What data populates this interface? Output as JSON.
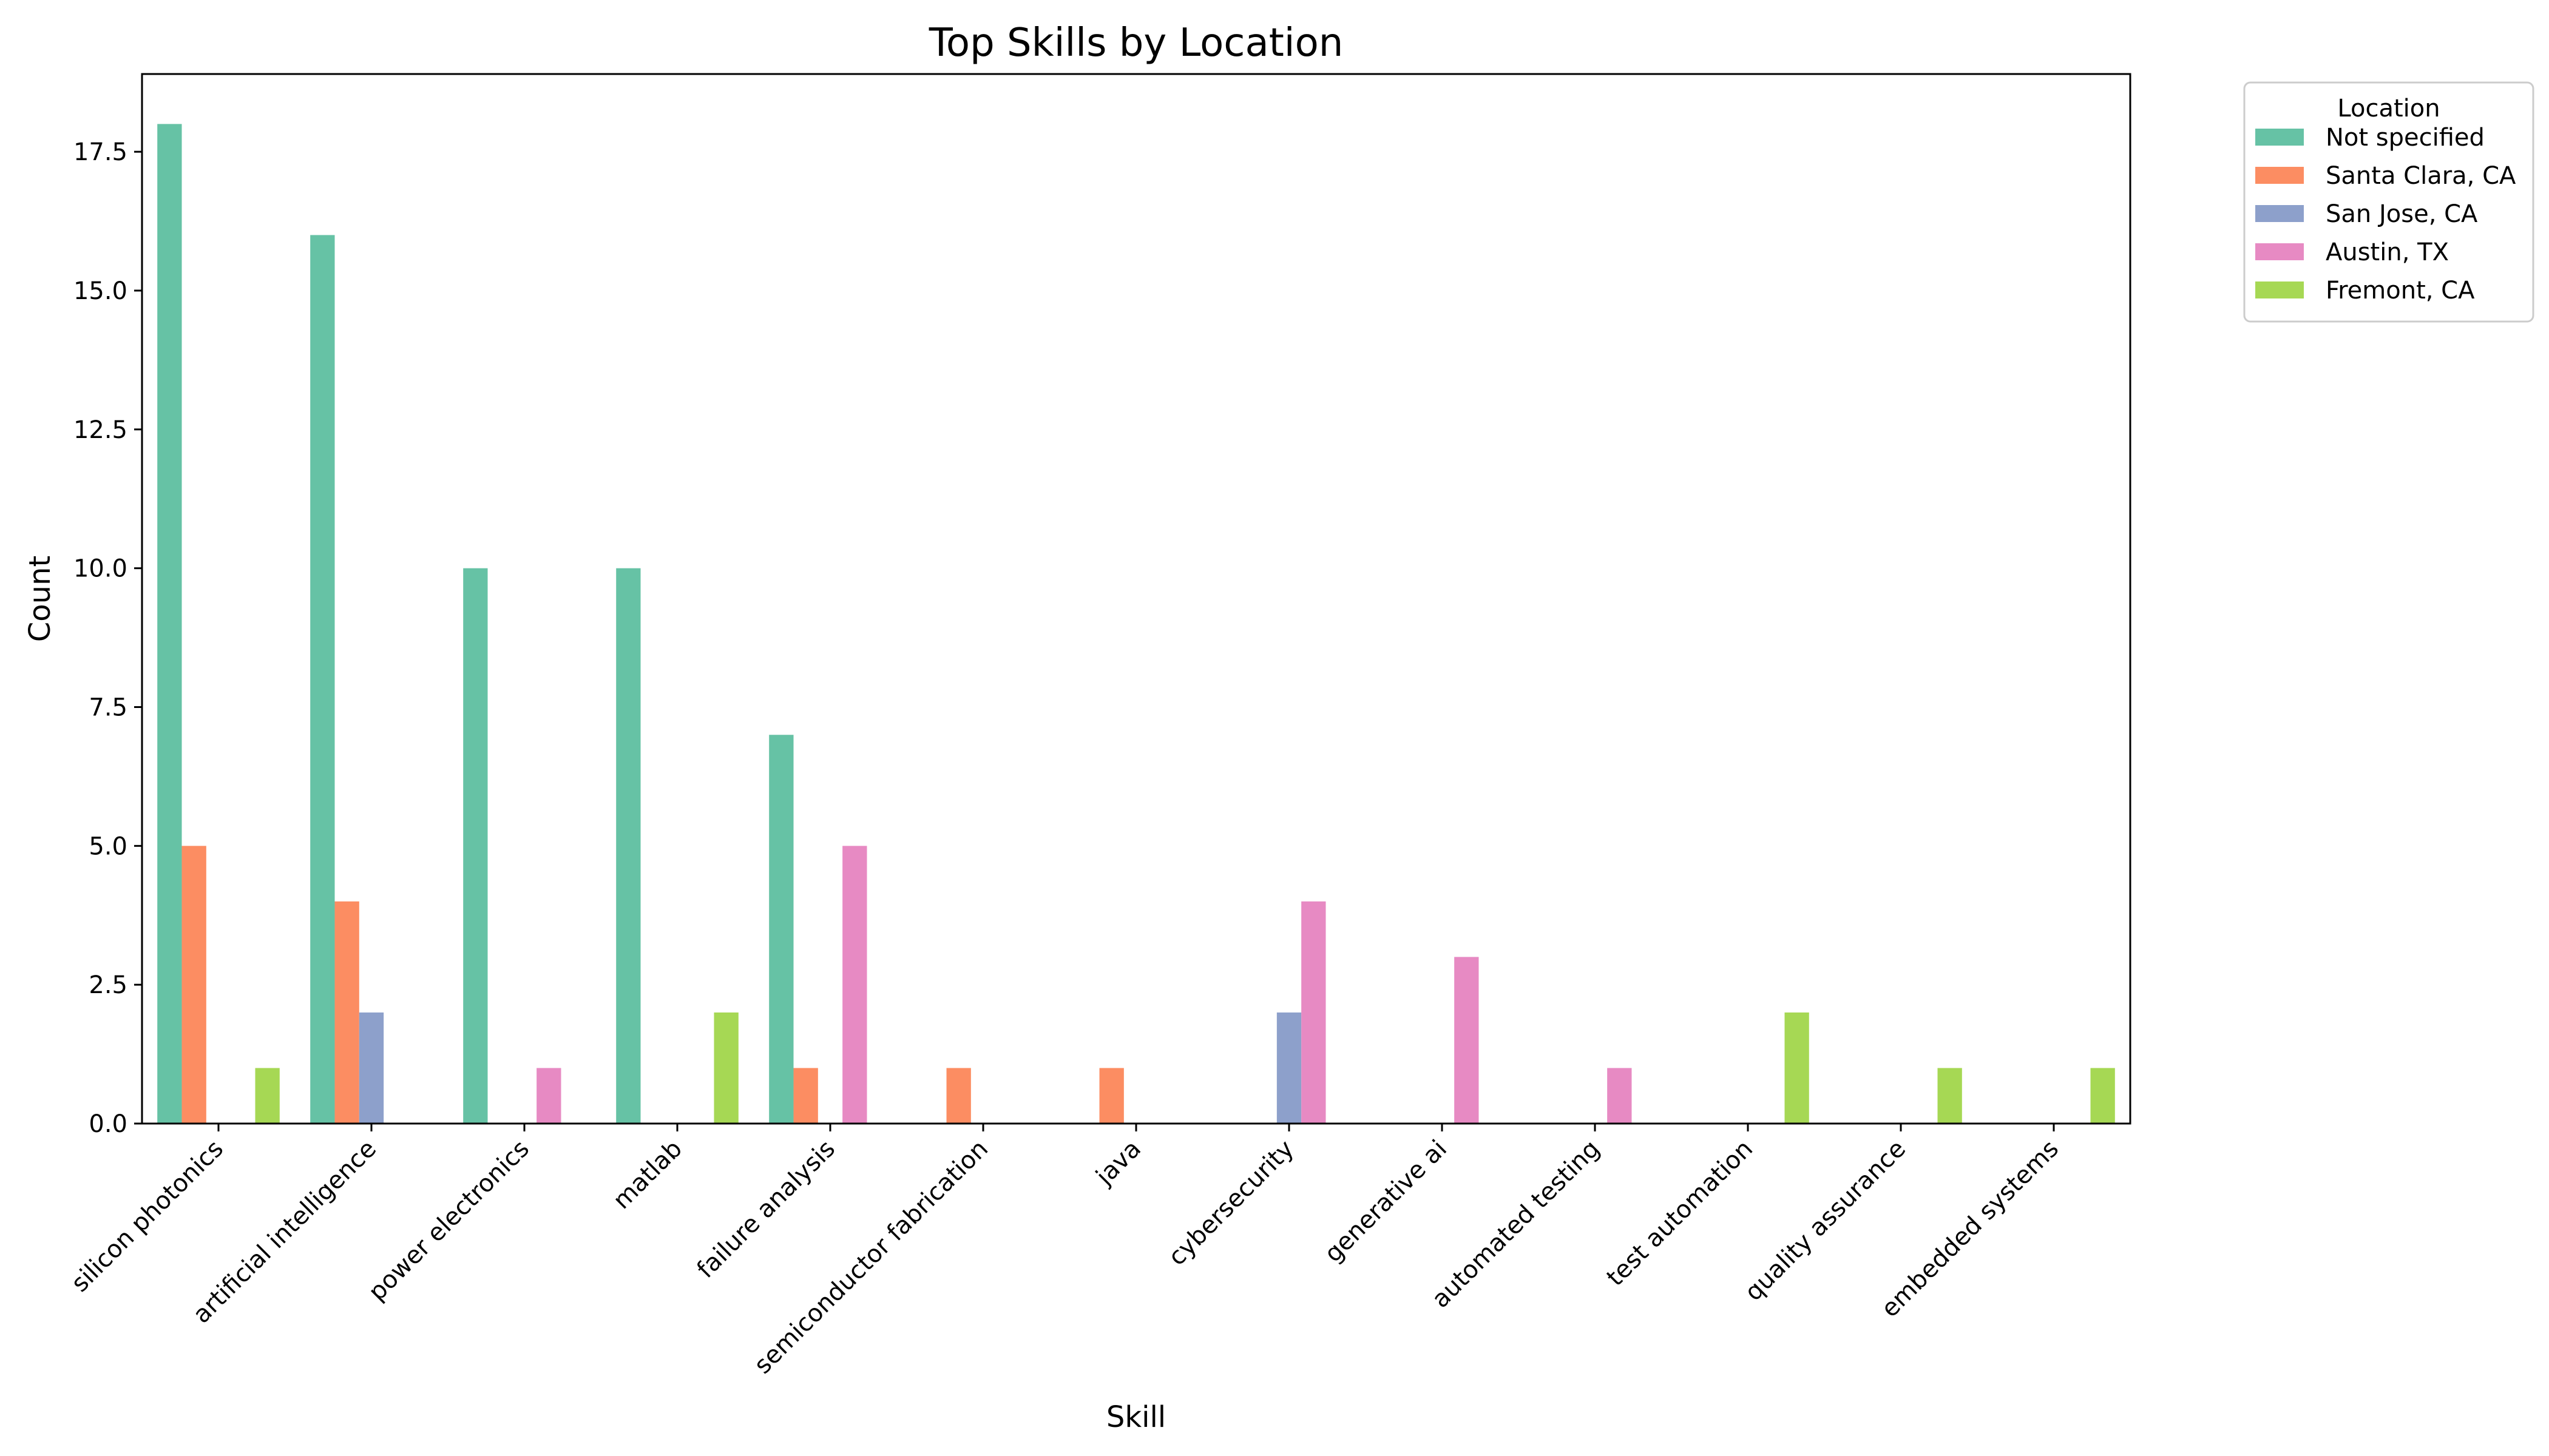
{
  "chart_data": {
    "type": "bar",
    "title": "Top Skills by Location",
    "xlabel": "Skill",
    "ylabel": "Count",
    "ylim": [
      0,
      18.9
    ],
    "yticks": [
      0,
      2.5,
      5,
      7.5,
      10,
      12.5,
      15,
      17.5
    ],
    "ytick_labels": [
      "0.0",
      "2.5",
      "5.0",
      "7.5",
      "10.0",
      "12.5",
      "15.0",
      "17.5"
    ],
    "categories": [
      "silicon photonics",
      "artificial intelligence",
      "power electronics",
      "matlab",
      "failure analysis",
      "semiconductor fabrication",
      "java",
      "cybersecurity",
      "generative ai",
      "automated testing",
      "test automation",
      "quality assurance",
      "embedded systems"
    ],
    "legend": {
      "title": "Location",
      "placement": "outside-top-right"
    },
    "series": [
      {
        "name": "Not specified",
        "color": "#66c2a5",
        "values": [
          18,
          16,
          10,
          10,
          7,
          0,
          0,
          0,
          0,
          0,
          0,
          0,
          0
        ]
      },
      {
        "name": "Santa Clara, CA",
        "color": "#fc8d62",
        "values": [
          5,
          4,
          0,
          0,
          1,
          1,
          1,
          0,
          0,
          0,
          0,
          0,
          0
        ]
      },
      {
        "name": "San Jose, CA",
        "color": "#8da0cb",
        "values": [
          0,
          2,
          0,
          0,
          0,
          0,
          0,
          2,
          0,
          0,
          0,
          0,
          0
        ]
      },
      {
        "name": "Austin, TX",
        "color": "#e78ac3",
        "values": [
          0,
          0,
          1,
          0,
          5,
          0,
          0,
          4,
          3,
          1,
          0,
          0,
          0
        ]
      },
      {
        "name": "Fremont, CA",
        "color": "#a6d854",
        "values": [
          1,
          0,
          0,
          2,
          0,
          0,
          0,
          0,
          0,
          0,
          2,
          1,
          1
        ]
      }
    ],
    "grid": false
  }
}
